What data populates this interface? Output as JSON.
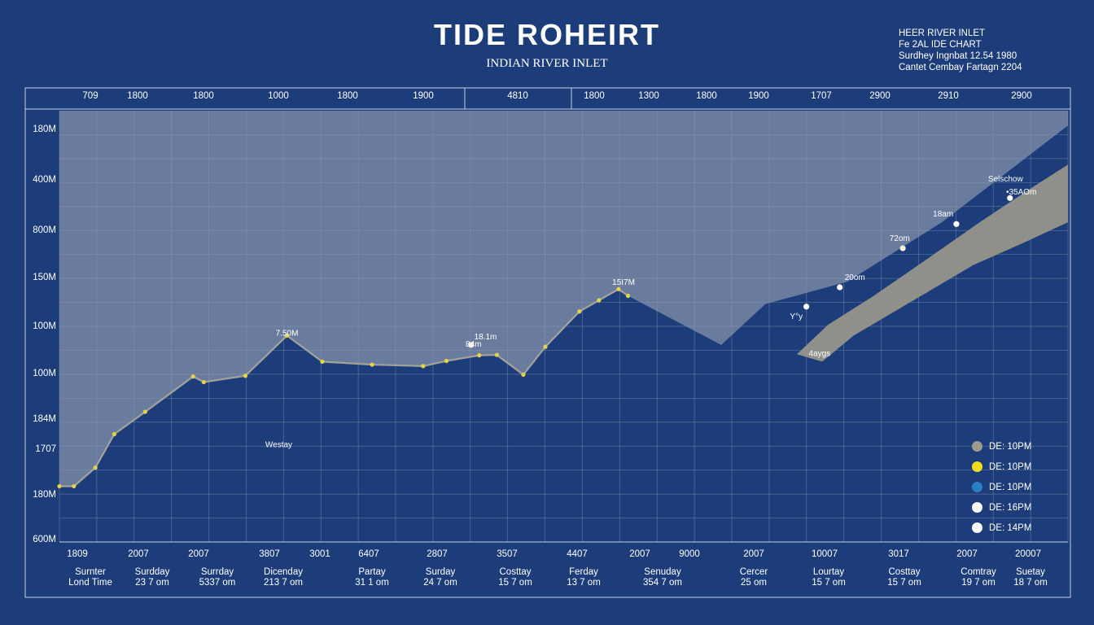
{
  "chart_data": {
    "type": "line",
    "title": "TIDE ROHEIRT",
    "subtitle": "INDIAN RIVER INLET",
    "info_lines": [
      "HEER RIVER INLET",
      "Fe 2AL IDE CHART",
      "Surdhey Ingnbat 12.54 1980",
      "Cantet Cembay Fartagn 2204"
    ],
    "top_ticks": [
      "709",
      "1800",
      "1800",
      "1000",
      "1800",
      "1900",
      "4810",
      "1800",
      "1300",
      "1800",
      "1900",
      "1707",
      "2900",
      "2910",
      "2900"
    ],
    "y_tick_labels": [
      "180M",
      "400M",
      "800M",
      "150M",
      "100M",
      "100M",
      "184M",
      "1707",
      "180M",
      "600M"
    ],
    "bottom_ticks": [
      "1809",
      "2007",
      "2007",
      "3807",
      "3001",
      "6407",
      "2807",
      "3507",
      "4407",
      "2007",
      "9000",
      "2007",
      "10007",
      "3017",
      "2007",
      "20007"
    ],
    "bottom_day_lines": [
      [
        "Surnter",
        "Lond Time"
      ],
      [
        "Surdday",
        "23 7 om"
      ],
      [
        "Surrday",
        "5337 om"
      ],
      [
        "Dicenday",
        "213 7 om"
      ],
      [
        "Partay",
        "31 1 om"
      ],
      [
        "Surday",
        "24 7 om"
      ],
      [
        "Costtay",
        "15 7 om"
      ],
      [
        "Ferday",
        "13 7 om"
      ],
      [
        "Senuday",
        "354 7 om"
      ],
      [
        "Cercer",
        "25 om"
      ],
      [
        "Lourtay",
        "15 7 om"
      ],
      [
        "Costtay",
        "15 7 om"
      ],
      [
        "Comtray",
        "19 7 om"
      ],
      [
        "Suetay",
        "18 7 om"
      ]
    ],
    "series": [
      {
        "x": [
          0,
          0.23,
          0.57,
          0.87,
          1.36,
          2.12,
          2.29,
          2.95,
          3.61,
          4.17,
          4.96,
          5.77,
          6.14,
          6.66,
          6.94,
          7.36,
          7.71,
          8.25,
          8.56,
          8.87,
          9.02
        ],
        "y": [
          1.5,
          1.5,
          2.0,
          2.9,
          3.5,
          4.45,
          4.3,
          4.47,
          5.55,
          4.85,
          4.77,
          4.73,
          4.87,
          5.02,
          5.03,
          4.5,
          5.25,
          6.2,
          6.5,
          6.8,
          6.62
        ]
      }
    ],
    "data_labels": [
      {
        "x": 3.61,
        "y": 5.55,
        "text": "7.50M"
      },
      {
        "x": 6.57,
        "y": 5.25,
        "text": "84m"
      },
      {
        "x": 6.76,
        "y": 5.45,
        "text": "18.1m"
      },
      {
        "x": 8.95,
        "y": 6.92,
        "text": "15I7M"
      },
      {
        "x": 11.69,
        "y": 6.0,
        "text": "Y°y"
      },
      {
        "x": 12.06,
        "y": 5.0,
        "text": "4aygs"
      },
      {
        "x": 12.62,
        "y": 7.05,
        "text": "20om"
      },
      {
        "x": 13.33,
        "y": 8.1,
        "text": "72om"
      },
      {
        "x": 14.02,
        "y": 8.75,
        "text": "18am"
      },
      {
        "x": 15.01,
        "y": 9.7,
        "text": "Selschow"
      },
      {
        "x": 15.26,
        "y": 9.35,
        "text": "•35AOm"
      },
      {
        "x": 3.48,
        "y": 2.55,
        "text": "Westay"
      }
    ],
    "markers": [
      {
        "x": 6.53,
        "y": 5.3,
        "color": "#f2eed8"
      },
      {
        "x": 11.85,
        "y": 6.33,
        "color": "#ffffff"
      },
      {
        "x": 12.38,
        "y": 6.85,
        "color": "#ffffff"
      },
      {
        "x": 13.38,
        "y": 7.9,
        "color": "#f2eed8"
      },
      {
        "x": 14.23,
        "y": 8.55,
        "color": "#ffffff"
      },
      {
        "x": 15.08,
        "y": 9.25,
        "color": "#ffffff"
      }
    ],
    "legend": [
      {
        "color": "#9e9a8c",
        "label": "DE: 10PM"
      },
      {
        "color": "#f3dc1e",
        "label": "DE: 10PM"
      },
      {
        "color": "#2c7fc4",
        "label": "DE: 10PM"
      },
      {
        "color": "#ffffff",
        "label": "DE: 16PM"
      },
      {
        "color": "#ffffff",
        "label": "DE: 14PM"
      }
    ],
    "xlim": [
      0,
      16
    ],
    "ylim": [
      0,
      11.6
    ],
    "grid": true,
    "legend_position": "bottom-right",
    "colors": {
      "background": "#1d3d7a",
      "sky_fill": "#6a7c9e",
      "grid": "#8d99b4",
      "line": "#a3a29a",
      "point": "#e2d34a",
      "band": "#97958b"
    }
  }
}
